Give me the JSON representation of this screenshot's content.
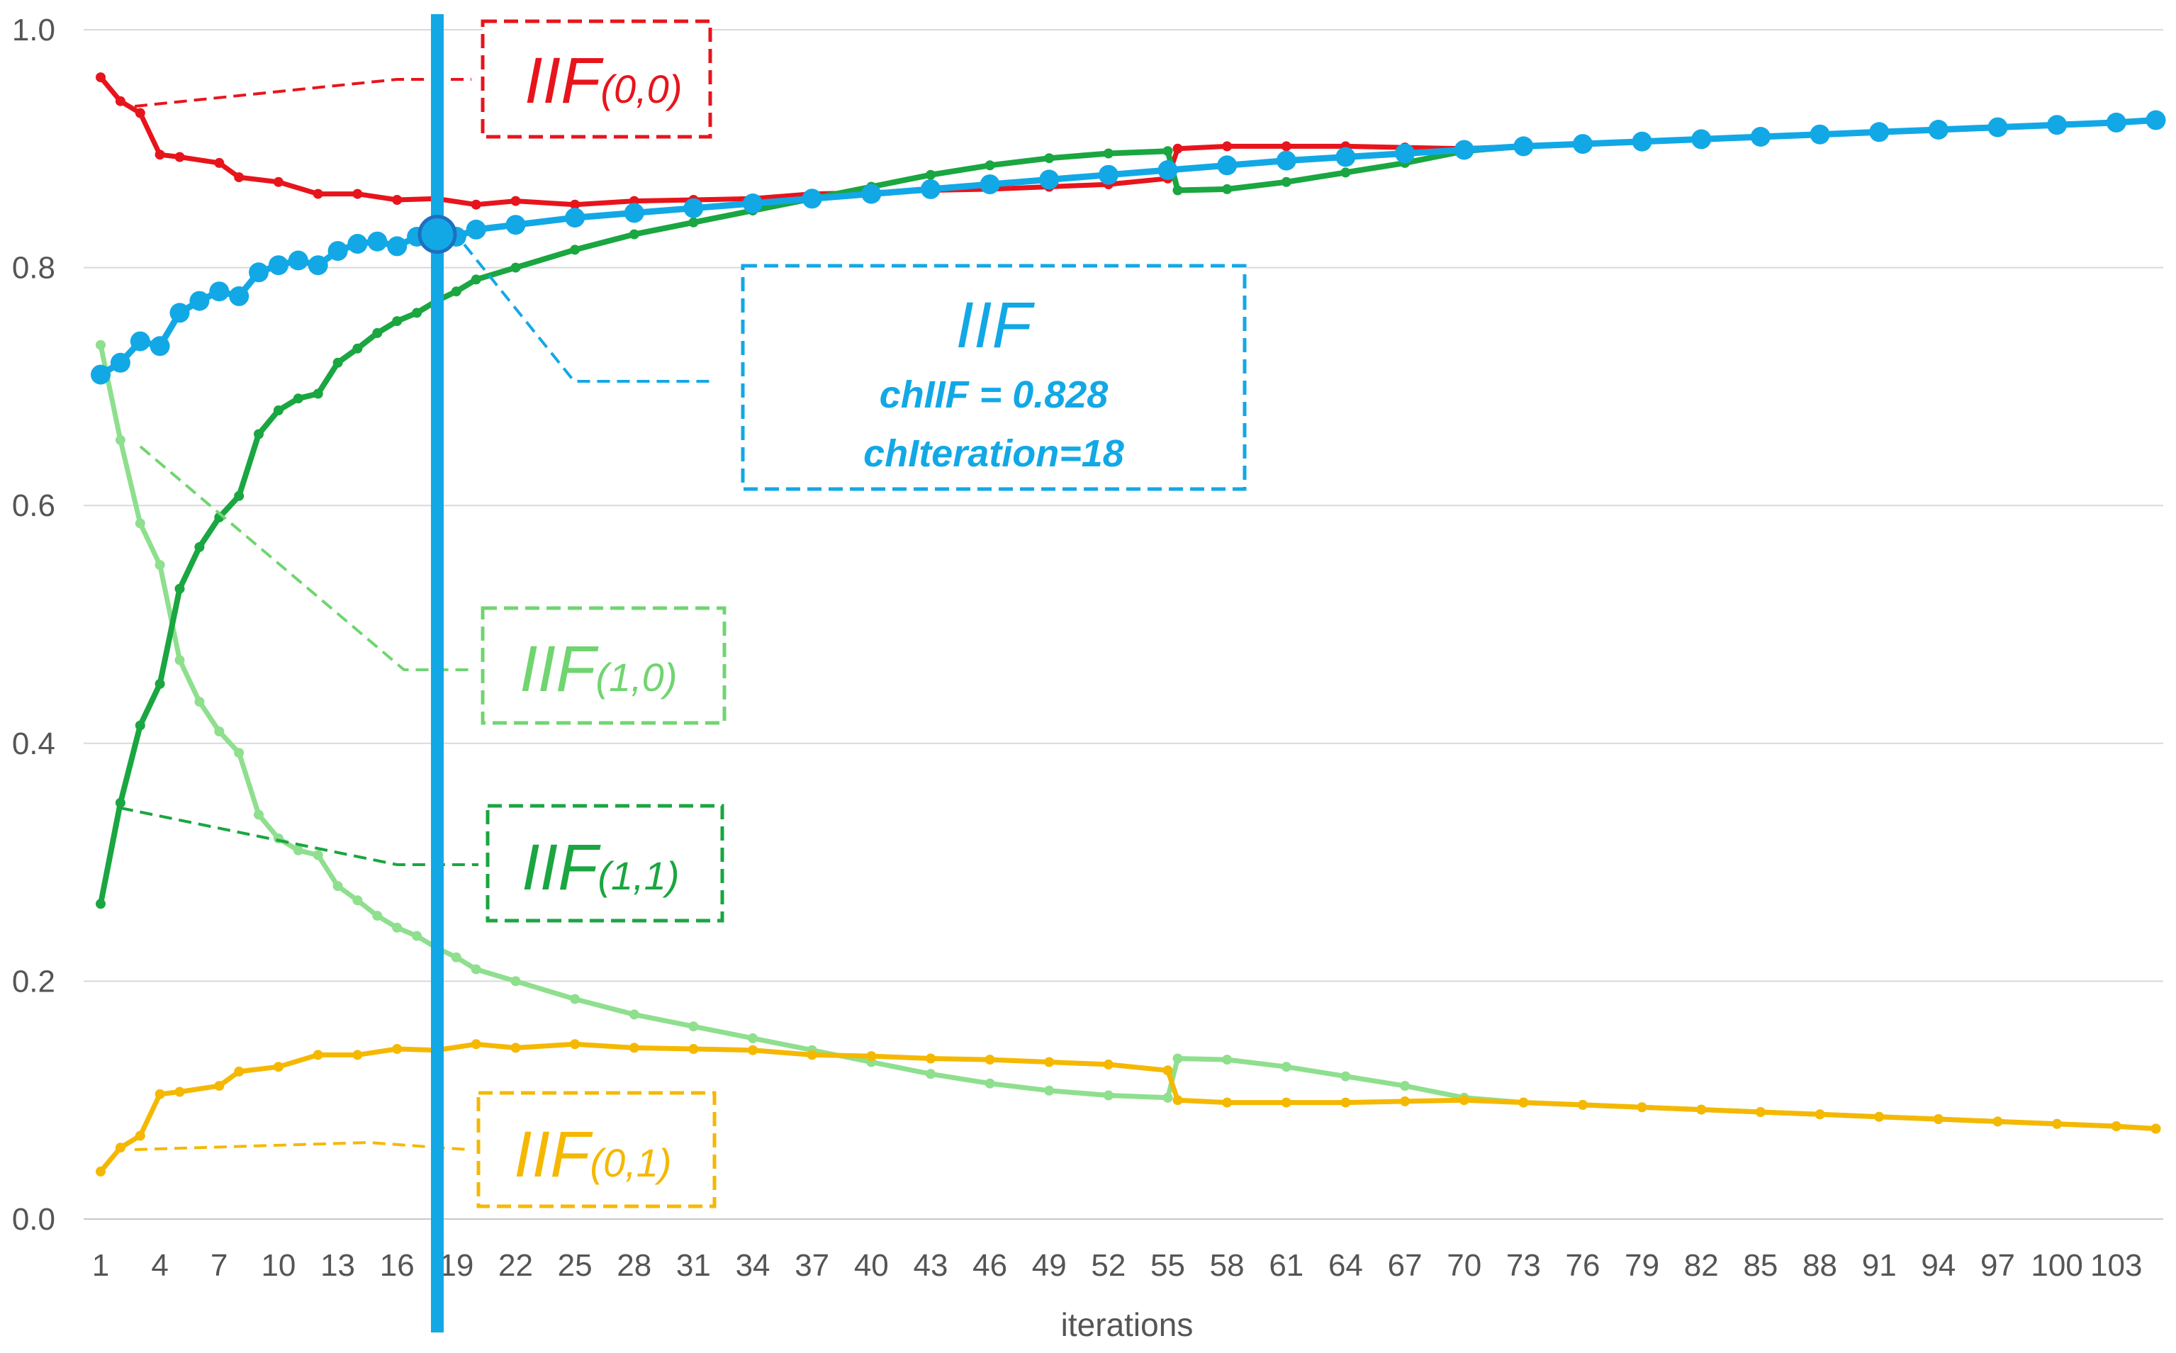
{
  "chart_data": {
    "type": "line",
    "xlabel": "iterations",
    "ylabel": "",
    "x_tick_labels": [
      "1",
      "4",
      "7",
      "10",
      "13",
      "16",
      "19",
      "22",
      "25",
      "28",
      "31",
      "34",
      "37",
      "40",
      "43",
      "46",
      "49",
      "52",
      "55",
      "58",
      "61",
      "64",
      "67",
      "70",
      "73",
      "76",
      "79",
      "82",
      "85",
      "88",
      "91",
      "94",
      "97",
      "100",
      "103"
    ],
    "y_tick_labels": [
      "0.0",
      "0.2",
      "0.4",
      "0.6",
      "0.8",
      "1.0"
    ],
    "xlim": [
      1,
      105
    ],
    "ylim": [
      0,
      1.0
    ],
    "grid": true,
    "series": [
      {
        "name": "IIF(0,0)",
        "color": "#e8141c",
        "points": [
          [
            1,
            0.96
          ],
          [
            2,
            0.94
          ],
          [
            3,
            0.93
          ],
          [
            4,
            0.895
          ],
          [
            5,
            0.893
          ],
          [
            7,
            0.888
          ],
          [
            8,
            0.876
          ],
          [
            10,
            0.872
          ],
          [
            12,
            0.862
          ],
          [
            14,
            0.862
          ],
          [
            16,
            0.857
          ],
          [
            18,
            0.858
          ],
          [
            20,
            0.853
          ],
          [
            22,
            0.856
          ],
          [
            25,
            0.853
          ],
          [
            28,
            0.856
          ],
          [
            31,
            0.857
          ],
          [
            34,
            0.858
          ],
          [
            37,
            0.862
          ],
          [
            40,
            0.863
          ],
          [
            43,
            0.865
          ],
          [
            46,
            0.866
          ],
          [
            49,
            0.868
          ],
          [
            52,
            0.87
          ],
          [
            55,
            0.875
          ],
          [
            55.5,
            0.9
          ],
          [
            58,
            0.902
          ],
          [
            61,
            0.902
          ],
          [
            64,
            0.902
          ],
          [
            67,
            0.901
          ],
          [
            70,
            0.9
          ],
          [
            73,
            0.902
          ],
          [
            76,
            0.904
          ],
          [
            79,
            0.906
          ],
          [
            82,
            0.908
          ],
          [
            85,
            0.91
          ],
          [
            88,
            0.912
          ],
          [
            91,
            0.914
          ],
          [
            94,
            0.916
          ],
          [
            97,
            0.918
          ],
          [
            100,
            0.92
          ],
          [
            103,
            0.922
          ],
          [
            105,
            0.924
          ]
        ]
      },
      {
        "name": "IIF",
        "color": "#12a8e6",
        "points": [
          [
            1,
            0.71
          ],
          [
            2,
            0.72
          ],
          [
            3,
            0.738
          ],
          [
            4,
            0.734
          ],
          [
            5,
            0.762
          ],
          [
            6,
            0.772
          ],
          [
            7,
            0.78
          ],
          [
            8,
            0.776
          ],
          [
            9,
            0.796
          ],
          [
            10,
            0.802
          ],
          [
            11,
            0.806
          ],
          [
            12,
            0.802
          ],
          [
            13,
            0.814
          ],
          [
            14,
            0.82
          ],
          [
            15,
            0.822
          ],
          [
            16,
            0.818
          ],
          [
            17,
            0.826
          ],
          [
            18,
            0.828
          ],
          [
            19,
            0.826
          ],
          [
            20,
            0.832
          ],
          [
            22,
            0.836
          ],
          [
            25,
            0.842
          ],
          [
            28,
            0.846
          ],
          [
            31,
            0.85
          ],
          [
            34,
            0.854
          ],
          [
            37,
            0.858
          ],
          [
            40,
            0.862
          ],
          [
            43,
            0.866
          ],
          [
            46,
            0.87
          ],
          [
            49,
            0.874
          ],
          [
            52,
            0.878
          ],
          [
            55,
            0.882
          ],
          [
            58,
            0.886
          ],
          [
            61,
            0.89
          ],
          [
            64,
            0.893
          ],
          [
            67,
            0.896
          ],
          [
            70,
            0.899
          ],
          [
            73,
            0.902
          ],
          [
            76,
            0.904
          ],
          [
            79,
            0.906
          ],
          [
            82,
            0.908
          ],
          [
            85,
            0.91
          ],
          [
            88,
            0.912
          ],
          [
            91,
            0.914
          ],
          [
            94,
            0.916
          ],
          [
            97,
            0.918
          ],
          [
            100,
            0.92
          ],
          [
            103,
            0.922
          ],
          [
            105,
            0.924
          ]
        ]
      },
      {
        "name": "IIF(1,1)",
        "color": "#1aa640",
        "points": [
          [
            1,
            0.265
          ],
          [
            2,
            0.35
          ],
          [
            3,
            0.415
          ],
          [
            4,
            0.45
          ],
          [
            5,
            0.53
          ],
          [
            6,
            0.565
          ],
          [
            7,
            0.59
          ],
          [
            8,
            0.608
          ],
          [
            9,
            0.66
          ],
          [
            10,
            0.68
          ],
          [
            11,
            0.69
          ],
          [
            12,
            0.694
          ],
          [
            13,
            0.72
          ],
          [
            14,
            0.732
          ],
          [
            15,
            0.745
          ],
          [
            16,
            0.755
          ],
          [
            17,
            0.762
          ],
          [
            18,
            0.772
          ],
          [
            19,
            0.78
          ],
          [
            20,
            0.79
          ],
          [
            22,
            0.8
          ],
          [
            25,
            0.815
          ],
          [
            28,
            0.828
          ],
          [
            31,
            0.838
          ],
          [
            34,
            0.848
          ],
          [
            37,
            0.858
          ],
          [
            40,
            0.868
          ],
          [
            43,
            0.878
          ],
          [
            46,
            0.886
          ],
          [
            49,
            0.892
          ],
          [
            52,
            0.896
          ],
          [
            55,
            0.898
          ],
          [
            55.5,
            0.865
          ],
          [
            58,
            0.866
          ],
          [
            61,
            0.872
          ],
          [
            64,
            0.88
          ],
          [
            67,
            0.888
          ],
          [
            70,
            0.898
          ],
          [
            73,
            0.902
          ],
          [
            76,
            0.904
          ],
          [
            79,
            0.906
          ],
          [
            82,
            0.908
          ],
          [
            85,
            0.91
          ],
          [
            88,
            0.912
          ],
          [
            91,
            0.914
          ],
          [
            94,
            0.916
          ],
          [
            97,
            0.918
          ],
          [
            100,
            0.92
          ],
          [
            103,
            0.922
          ],
          [
            105,
            0.924
          ]
        ]
      },
      {
        "name": "IIF(1,0)",
        "color": "#8edf8e",
        "points": [
          [
            1,
            0.735
          ],
          [
            2,
            0.655
          ],
          [
            3,
            0.585
          ],
          [
            4,
            0.55
          ],
          [
            5,
            0.47
          ],
          [
            6,
            0.435
          ],
          [
            7,
            0.41
          ],
          [
            8,
            0.392
          ],
          [
            9,
            0.34
          ],
          [
            10,
            0.32
          ],
          [
            11,
            0.31
          ],
          [
            12,
            0.306
          ],
          [
            13,
            0.28
          ],
          [
            14,
            0.268
          ],
          [
            15,
            0.255
          ],
          [
            16,
            0.245
          ],
          [
            17,
            0.238
          ],
          [
            18,
            0.228
          ],
          [
            19,
            0.22
          ],
          [
            20,
            0.21
          ],
          [
            22,
            0.2
          ],
          [
            25,
            0.185
          ],
          [
            28,
            0.172
          ],
          [
            31,
            0.162
          ],
          [
            34,
            0.152
          ],
          [
            37,
            0.142
          ],
          [
            40,
            0.132
          ],
          [
            43,
            0.122
          ],
          [
            46,
            0.114
          ],
          [
            49,
            0.108
          ],
          [
            52,
            0.104
          ],
          [
            55,
            0.102
          ],
          [
            55.5,
            0.135
          ],
          [
            58,
            0.134
          ],
          [
            61,
            0.128
          ],
          [
            64,
            0.12
          ],
          [
            67,
            0.112
          ],
          [
            70,
            0.102
          ],
          [
            73,
            0.098
          ],
          [
            76,
            0.096
          ],
          [
            79,
            0.094
          ],
          [
            82,
            0.092
          ],
          [
            85,
            0.09
          ],
          [
            88,
            0.088
          ],
          [
            91,
            0.086
          ],
          [
            94,
            0.084
          ],
          [
            97,
            0.082
          ],
          [
            100,
            0.08
          ],
          [
            103,
            0.078
          ],
          [
            105,
            0.076
          ]
        ]
      },
      {
        "name": "IIF(0,1)",
        "color": "#f5b800",
        "points": [
          [
            1,
            0.04
          ],
          [
            2,
            0.06
          ],
          [
            3,
            0.07
          ],
          [
            4,
            0.105
          ],
          [
            5,
            0.107
          ],
          [
            7,
            0.112
          ],
          [
            8,
            0.124
          ],
          [
            10,
            0.128
          ],
          [
            12,
            0.138
          ],
          [
            14,
            0.138
          ],
          [
            16,
            0.143
          ],
          [
            18,
            0.142
          ],
          [
            20,
            0.147
          ],
          [
            22,
            0.144
          ],
          [
            25,
            0.147
          ],
          [
            28,
            0.144
          ],
          [
            31,
            0.143
          ],
          [
            34,
            0.142
          ],
          [
            37,
            0.138
          ],
          [
            40,
            0.137
          ],
          [
            43,
            0.135
          ],
          [
            46,
            0.134
          ],
          [
            49,
            0.132
          ],
          [
            52,
            0.13
          ],
          [
            55,
            0.125
          ],
          [
            55.5,
            0.1
          ],
          [
            58,
            0.098
          ],
          [
            61,
            0.098
          ],
          [
            64,
            0.098
          ],
          [
            67,
            0.099
          ],
          [
            70,
            0.1
          ],
          [
            73,
            0.098
          ],
          [
            76,
            0.096
          ],
          [
            79,
            0.094
          ],
          [
            82,
            0.092
          ],
          [
            85,
            0.09
          ],
          [
            88,
            0.088
          ],
          [
            91,
            0.086
          ],
          [
            94,
            0.084
          ],
          [
            97,
            0.082
          ],
          [
            100,
            0.08
          ],
          [
            103,
            0.078
          ],
          [
            105,
            0.076
          ]
        ]
      }
    ],
    "annotations": [
      {
        "series": "IIF(0,0)",
        "main": "IIF",
        "sub": "(0,0)",
        "color": "#e8141c"
      },
      {
        "series": "IIF",
        "main": "IIF",
        "line1": "chIIF = 0.828",
        "line2": "chIteration=18",
        "color": "#12a8e6"
      },
      {
        "series": "IIF(1,0)",
        "main": "IIF",
        "sub": "(1,0)",
        "color": "#70d570"
      },
      {
        "series": "IIF(1,1)",
        "main": "IIF",
        "sub": "(1,1)",
        "color": "#1aa640"
      },
      {
        "series": "IIF(0,1)",
        "main": "IIF",
        "sub": "(0,1)",
        "color": "#f5b800"
      }
    ],
    "marker": {
      "iteration": 18,
      "value": 0.828,
      "color": "#12a8e6"
    }
  }
}
